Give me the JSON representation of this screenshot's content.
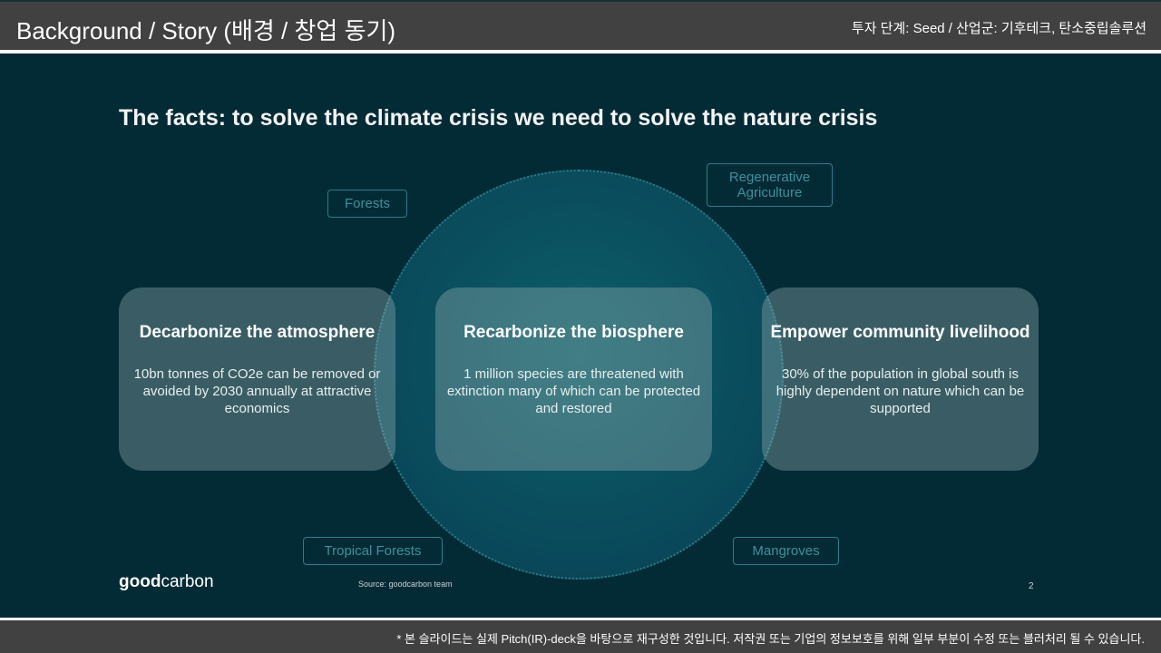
{
  "header": {
    "title": "Background / Story (배경 / 창업 동기)",
    "meta": "투자 단계: Seed / 산업군: 기후테크, 탄소중립솔루션"
  },
  "slide": {
    "title": "The facts: to solve the climate crisis we need to solve the nature crisis",
    "tags": [
      "Forests",
      "Regenerative Agriculture",
      "Tropical Forests",
      "Mangroves"
    ],
    "cards": [
      {
        "heading": "Decarbonize the atmosphere",
        "body": "10bn tonnes of CO2e can be removed or avoided by 2030 annually at attractive economics"
      },
      {
        "heading": "Recarbonize the biosphere",
        "body": "1 million species are threatened with extinction many of which can be protected and restored"
      },
      {
        "heading": "Empower community livelihood",
        "body": "30% of the population in global south is highly dependent on nature which can be supported"
      }
    ],
    "logo": {
      "bold": "good",
      "rest": "carbon"
    },
    "source": "Source: goodcarbon team",
    "page": "2"
  },
  "footer": {
    "note": "* 본 슬라이드는 실제 Pitch(IR)-deck을 바탕으로 재구성한 것입니다. 저작권 또는 기업의 정보보호를 위해 일부 부분이 수정 또는 블러처리 될 수 있습니다."
  }
}
